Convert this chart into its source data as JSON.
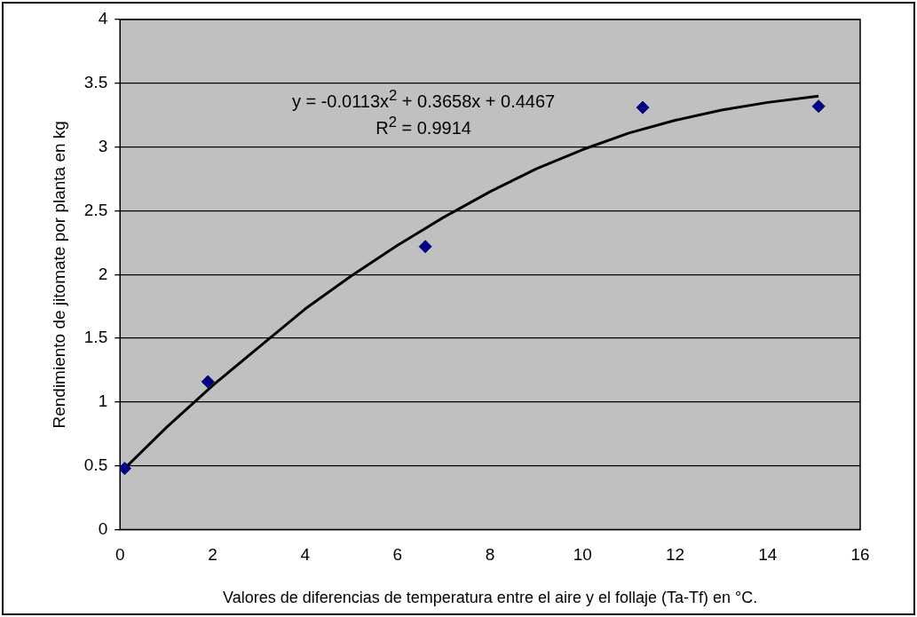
{
  "chart_data": {
    "type": "scatter",
    "xlabel": "Valores de diferencias de temperatura entre el aire y el follaje (Ta-Tf) en °C.",
    "ylabel": "Rendimiento de jitomate por planta en kg",
    "xlim": [
      0,
      16
    ],
    "xticks": [
      0,
      2,
      4,
      6,
      8,
      10,
      12,
      14,
      16
    ],
    "ylim": [
      0,
      4
    ],
    "yticks": [
      0,
      0.5,
      1,
      1.5,
      2,
      2.5,
      3,
      3.5,
      4
    ],
    "grid": "y",
    "legend": false,
    "marker": "diamond",
    "series": [
      {
        "color": "#000080",
        "x": [
          0.1,
          1.9,
          6.6,
          11.3,
          15.1
        ],
        "values": [
          0.48,
          1.16,
          2.22,
          3.31,
          3.32
        ]
      },
      {
        "type": "line",
        "color": "#000000",
        "line_style": "solid",
        "marker": "none",
        "x": [
          0.1,
          1,
          2,
          3,
          4,
          5,
          6,
          7,
          8,
          9,
          10,
          11,
          12,
          13,
          14,
          15.1
        ],
        "values": [
          0.48,
          0.8,
          1.13,
          1.43,
          1.73,
          1.99,
          2.23,
          2.45,
          2.65,
          2.83,
          2.98,
          3.11,
          3.21,
          3.29,
          3.35,
          3.4
        ]
      }
    ],
    "annotations": [
      "y = -0.0113x$^{2}$ + 0.3658x + 0.4467",
      "R$^{2}$ = 0.9914"
    ]
  }
}
